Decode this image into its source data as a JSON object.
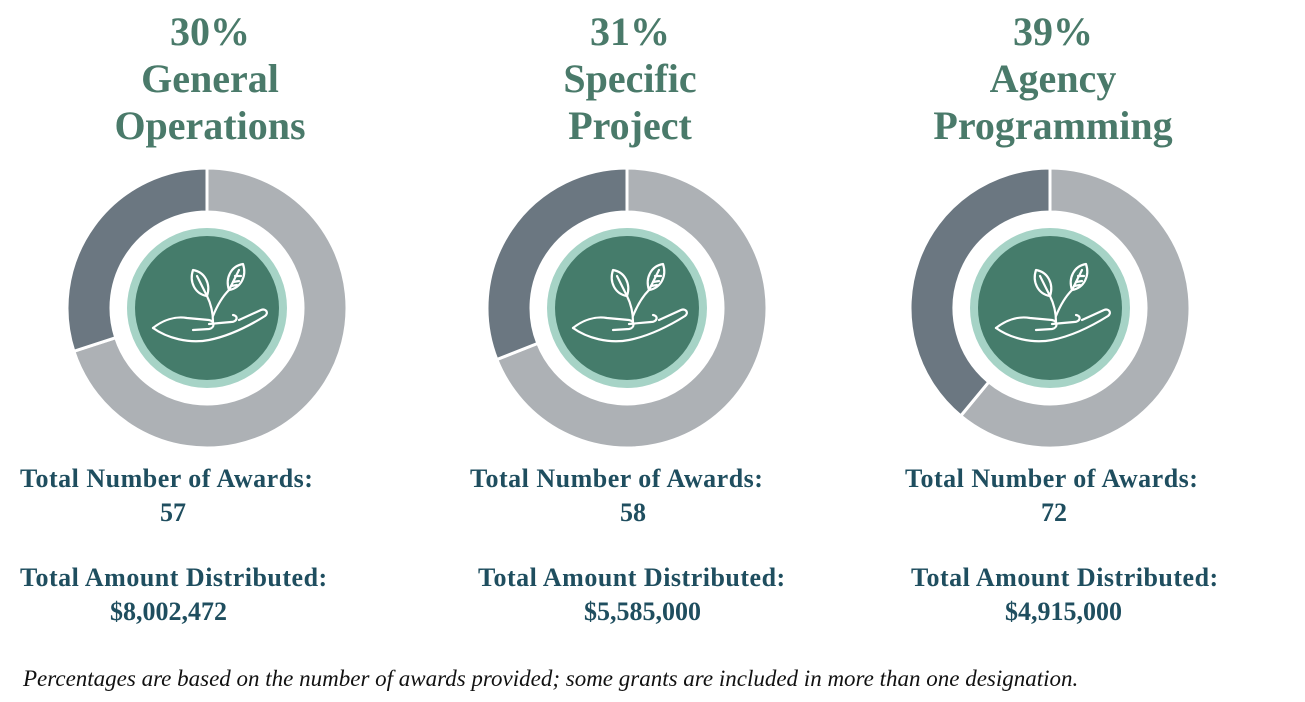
{
  "chart_data": [
    {
      "type": "pie",
      "percent_label": "30%",
      "title_lines": [
        "General",
        "Operations"
      ],
      "value": 30,
      "awards_label": "Total Number of Awards:",
      "awards": "57",
      "amount_label": "Total Amount Distributed:",
      "amount": "$8,002,472"
    },
    {
      "type": "pie",
      "percent_label": "31%",
      "title_lines": [
        "Specific",
        "Project"
      ],
      "value": 31,
      "awards_label": "Total Number of Awards:",
      "awards": "58",
      "amount_label": "Total Amount Distributed:",
      "amount": "$5,585,000"
    },
    {
      "type": "pie",
      "percent_label": "39%",
      "title_lines": [
        "Agency",
        "Programming"
      ],
      "value": 39,
      "awards_label": "Total Number of Awards:",
      "awards": "72",
      "amount_label": "Total Amount Distributed:",
      "amount": "$4,915,000"
    }
  ],
  "footnote": "Percentages are based on the number of awards provided; some grants are included in more than one designation.",
  "colors": {
    "highlight_segment": "#6b7781",
    "remainder_segment": "#adb1b5",
    "center_fill": "#457c6b",
    "center_ring": "#a6d3c6",
    "heading_text": "#4a7a6a",
    "stats_text": "#1f4e5f"
  },
  "icon": "hand-with-seedling-icon"
}
